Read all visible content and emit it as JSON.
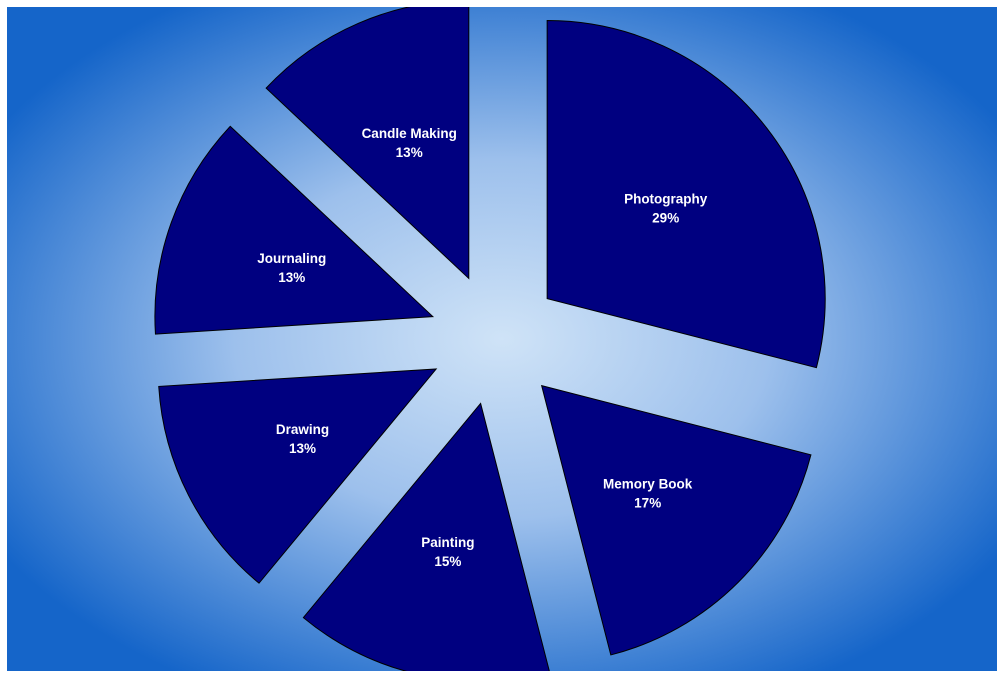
{
  "chart_data": {
    "type": "pie",
    "exploded": true,
    "start_angle_deg": 0,
    "direction": "clockwise",
    "slices": [
      {
        "label": "Photography",
        "value": 29,
        "value_label": "29%"
      },
      {
        "label": "Memory Book",
        "value": 17,
        "value_label": "17%"
      },
      {
        "label": "Painting",
        "value": 15,
        "value_label": "15%"
      },
      {
        "label": "Drawing",
        "value": 13,
        "value_label": "13%"
      },
      {
        "label": "Journaling",
        "value": 13,
        "value_label": "13%"
      },
      {
        "label": "Candle Making",
        "value": 13,
        "value_label": "13%"
      }
    ],
    "colors": {
      "slice_fill": "#000080",
      "slice_stroke": "#000000",
      "label_text": "#ffffff",
      "background_center": "#cfe3f7",
      "background_edge": "#1565c9"
    },
    "legend": "none"
  }
}
